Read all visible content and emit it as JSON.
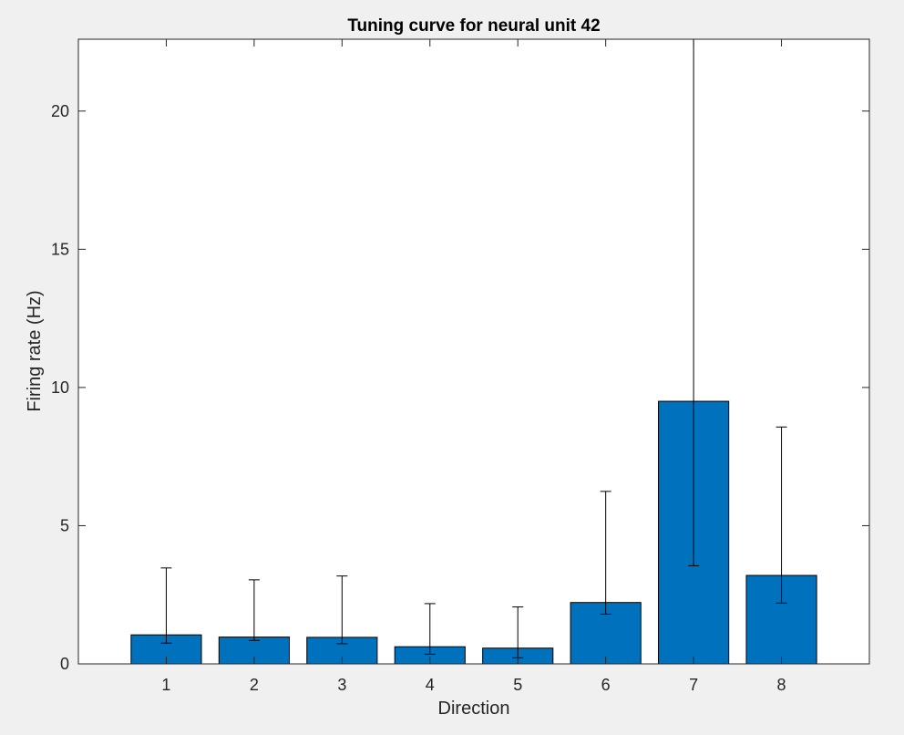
{
  "chart_data": {
    "type": "bar",
    "title": "Tuning curve for neural unit 42",
    "xlabel": "Direction",
    "ylabel": "Firing rate (Hz)",
    "categories": [
      "1",
      "2",
      "3",
      "4",
      "5",
      "6",
      "7",
      "8"
    ],
    "values": [
      1.05,
      0.97,
      0.96,
      0.62,
      0.57,
      2.22,
      9.5,
      3.2
    ],
    "error_low": [
      0.75,
      0.85,
      0.73,
      0.35,
      0.22,
      1.8,
      3.55,
      2.2
    ],
    "error_high": [
      3.47,
      3.04,
      3.18,
      2.18,
      2.06,
      6.24,
      22.6,
      8.57
    ],
    "xlim": [
      0,
      9
    ],
    "ylim": [
      0,
      22.6
    ],
    "yticks": [
      0,
      5,
      10,
      15,
      20
    ],
    "grid": false,
    "legend": "none",
    "bar_color": "#0072bd",
    "bar_edge_color": "#000000",
    "axes_background": "#ffffff",
    "figure_background": "#f0f0f0"
  }
}
